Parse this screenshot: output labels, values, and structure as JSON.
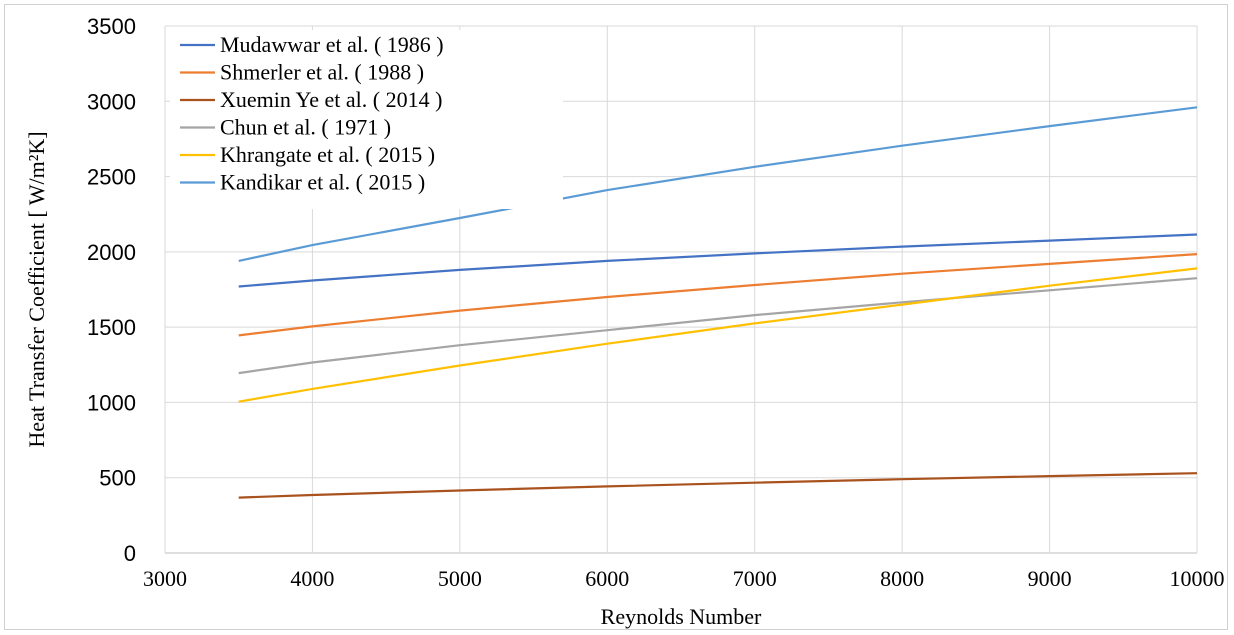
{
  "chart_data": {
    "type": "line",
    "xlabel": "Reynolds Number",
    "ylabel": "Heat Transfer Coefficient  [ W/m²K]",
    "xlim": [
      3000,
      10000
    ],
    "ylim": [
      0,
      3500
    ],
    "xticks": [
      3000,
      4000,
      5000,
      6000,
      7000,
      8000,
      9000,
      10000
    ],
    "yticks": [
      0,
      500,
      1000,
      1500,
      2000,
      2500,
      3000,
      3500
    ],
    "grid": true,
    "legend_position": "top-left",
    "series": [
      {
        "name": "Mudawwar et al. ( 1986 )",
        "color": "#4472C4",
        "x": [
          3500,
          4000,
          5000,
          6000,
          7000,
          8000,
          9000,
          10000
        ],
        "y": [
          1770,
          1810,
          1880,
          1940,
          1990,
          2035,
          2075,
          2115
        ]
      },
      {
        "name": "Shmerler et al. ( 1988 )",
        "color": "#ED7D31",
        "x": [
          3500,
          4000,
          5000,
          6000,
          7000,
          8000,
          9000,
          10000
        ],
        "y": [
          1445,
          1505,
          1610,
          1700,
          1780,
          1855,
          1920,
          1985
        ]
      },
      {
        "name": "Xuemin Ye et al. ( 2014 )",
        "color": "#A9521E",
        "x": [
          3500,
          4000,
          5000,
          6000,
          7000,
          8000,
          9000,
          10000
        ],
        "y": [
          368,
          385,
          415,
          442,
          467,
          490,
          511,
          530
        ]
      },
      {
        "name": "Chun et al. ( 1971 )",
        "color": "#A5A5A5",
        "x": [
          3500,
          4000,
          5000,
          6000,
          7000,
          8000,
          9000,
          10000
        ],
        "y": [
          1195,
          1265,
          1380,
          1480,
          1580,
          1665,
          1745,
          1825
        ]
      },
      {
        "name": "Khrangate et al. ( 2015 )",
        "color": "#FFC000",
        "x": [
          3500,
          4000,
          5000,
          6000,
          7000,
          8000,
          9000,
          10000
        ],
        "y": [
          1005,
          1090,
          1245,
          1390,
          1525,
          1650,
          1775,
          1890
        ]
      },
      {
        "name": "Kandikar et al. ( 2015 )",
        "color": "#5B9BD5",
        "x": [
          3500,
          4000,
          5000,
          6000,
          7000,
          8000,
          9000,
          10000
        ],
        "y": [
          1940,
          2045,
          2225,
          2410,
          2565,
          2705,
          2835,
          2960
        ]
      }
    ]
  }
}
